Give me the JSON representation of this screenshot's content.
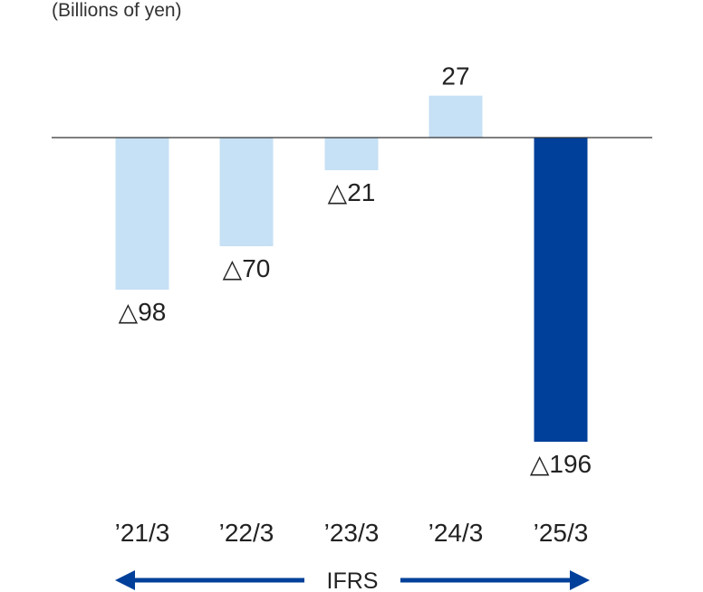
{
  "unit_label": "(Billions of yen)",
  "period_label": "IFRS",
  "colors": {
    "bar_light": "#c6e0f5",
    "bar_highlight": "#00409a",
    "axis": "#333333",
    "arrow": "#00409a",
    "text": "#222222"
  },
  "chart_data": {
    "type": "bar",
    "title": "",
    "xlabel": "",
    "ylabel": "(Billions of yen)",
    "categories": [
      "’21/3",
      "’22/3",
      "’23/3",
      "’24/3",
      "’25/3"
    ],
    "values": [
      -98,
      -70,
      -21,
      27,
      -196
    ],
    "value_labels": [
      "△98",
      "△70",
      "△21",
      "27",
      "△196"
    ],
    "highlight_index": 4,
    "ylim": [
      -196,
      27
    ],
    "grid": false,
    "legend": "none"
  }
}
